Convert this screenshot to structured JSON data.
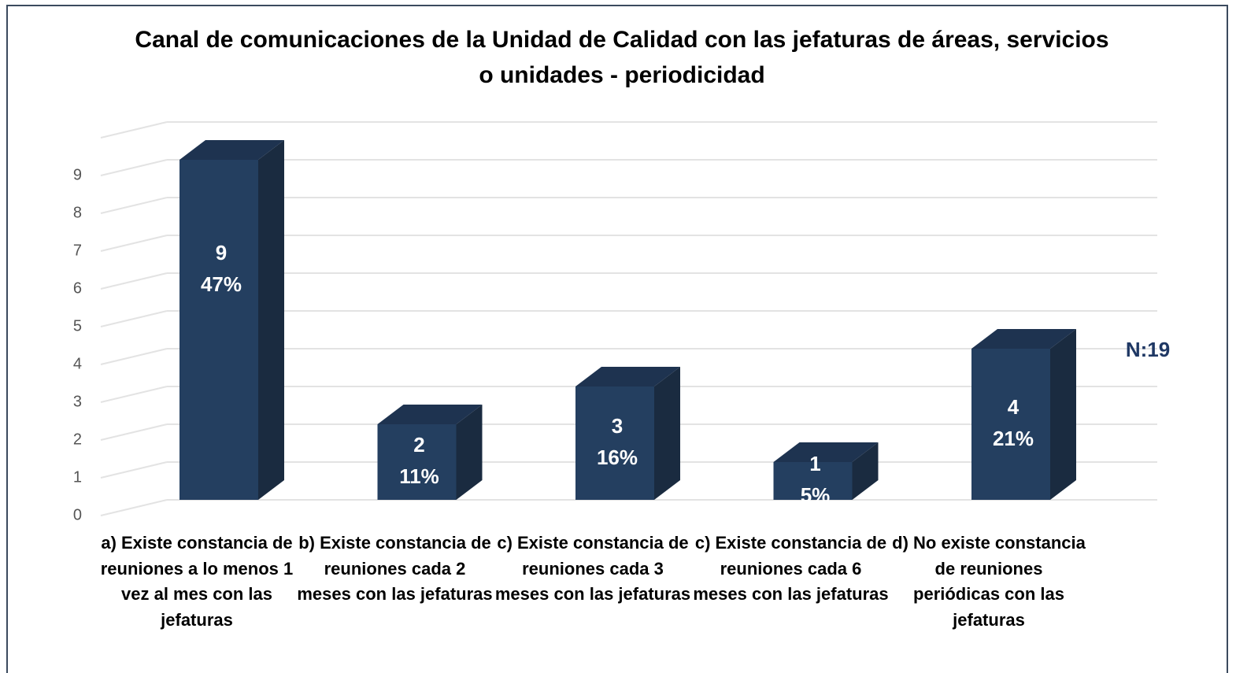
{
  "chart_data": {
    "type": "bar3d",
    "title": "Canal de comunicaciones de la Unidad de Calidad con las jefaturas de áreas, servicios o unidades -  periodicidad",
    "categories": [
      "a)    Existe constancia de reuniones a lo menos 1 vez al mes con las jefaturas",
      "b)    Existe constancia de reuniones cada 2 meses con las jefaturas",
      "c)    Existe constancia de reuniones cada 3 meses con las jefaturas",
      "c)    Existe constancia de reuniones cada 6 meses con las jefaturas",
      "d)    No existe constancia de reuniones periódicas con las jefaturas"
    ],
    "values": [
      9,
      2,
      3,
      1,
      4
    ],
    "percent_labels": [
      "47%",
      "11%",
      "16%",
      "5%",
      "21%"
    ],
    "color": "#243f60",
    "ylim": [
      0,
      10
    ],
    "yticks": [
      0,
      1,
      2,
      3,
      4,
      5,
      6,
      7,
      8,
      9
    ],
    "grid": true,
    "annotation": "N:19"
  }
}
